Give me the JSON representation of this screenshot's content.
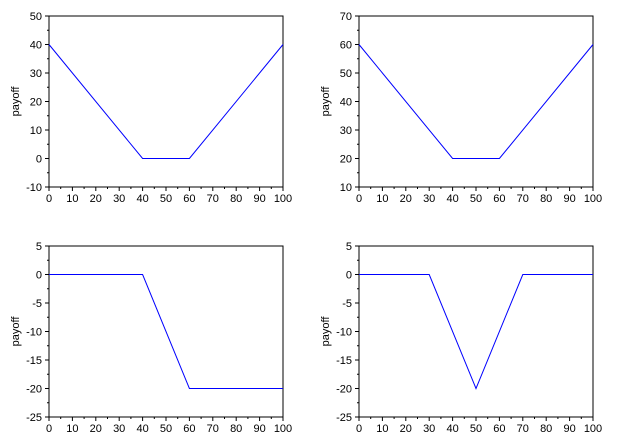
{
  "colors": {
    "line": "#0000ff",
    "axis": "#000000",
    "background": "#ffffff"
  },
  "chart_data": [
    {
      "type": "line",
      "ylabel": "payoff",
      "xlim": [
        0,
        100
      ],
      "ylim": [
        -10,
        50
      ],
      "xticks": [
        0,
        10,
        20,
        30,
        40,
        50,
        60,
        70,
        80,
        90,
        100
      ],
      "yticks": [
        -10,
        0,
        10,
        20,
        30,
        40,
        50
      ],
      "x": [
        0,
        40,
        60,
        100
      ],
      "y": [
        40,
        0,
        0,
        40
      ]
    },
    {
      "type": "line",
      "ylabel": "payoff",
      "xlim": [
        0,
        100
      ],
      "ylim": [
        10,
        70
      ],
      "xticks": [
        0,
        10,
        20,
        30,
        40,
        50,
        60,
        70,
        80,
        90,
        100
      ],
      "yticks": [
        10,
        20,
        30,
        40,
        50,
        60,
        70
      ],
      "x": [
        0,
        40,
        60,
        100
      ],
      "y": [
        60,
        20,
        20,
        60
      ]
    },
    {
      "type": "line",
      "ylabel": "payoff",
      "xlim": [
        0,
        100
      ],
      "ylim": [
        -25,
        5
      ],
      "xticks": [
        0,
        10,
        20,
        30,
        40,
        50,
        60,
        70,
        80,
        90,
        100
      ],
      "yticks": [
        -25,
        -20,
        -15,
        -10,
        -5,
        0,
        5
      ],
      "x": [
        0,
        40,
        60,
        100
      ],
      "y": [
        0,
        0,
        -20,
        -20
      ]
    },
    {
      "type": "line",
      "ylabel": "payoff",
      "xlim": [
        0,
        100
      ],
      "ylim": [
        -25,
        5
      ],
      "xticks": [
        0,
        10,
        20,
        30,
        40,
        50,
        60,
        70,
        80,
        90,
        100
      ],
      "yticks": [
        -25,
        -20,
        -15,
        -10,
        -5,
        0,
        5
      ],
      "x": [
        0,
        30,
        50,
        70,
        100
      ],
      "y": [
        0,
        0,
        -20,
        0,
        0
      ]
    }
  ]
}
